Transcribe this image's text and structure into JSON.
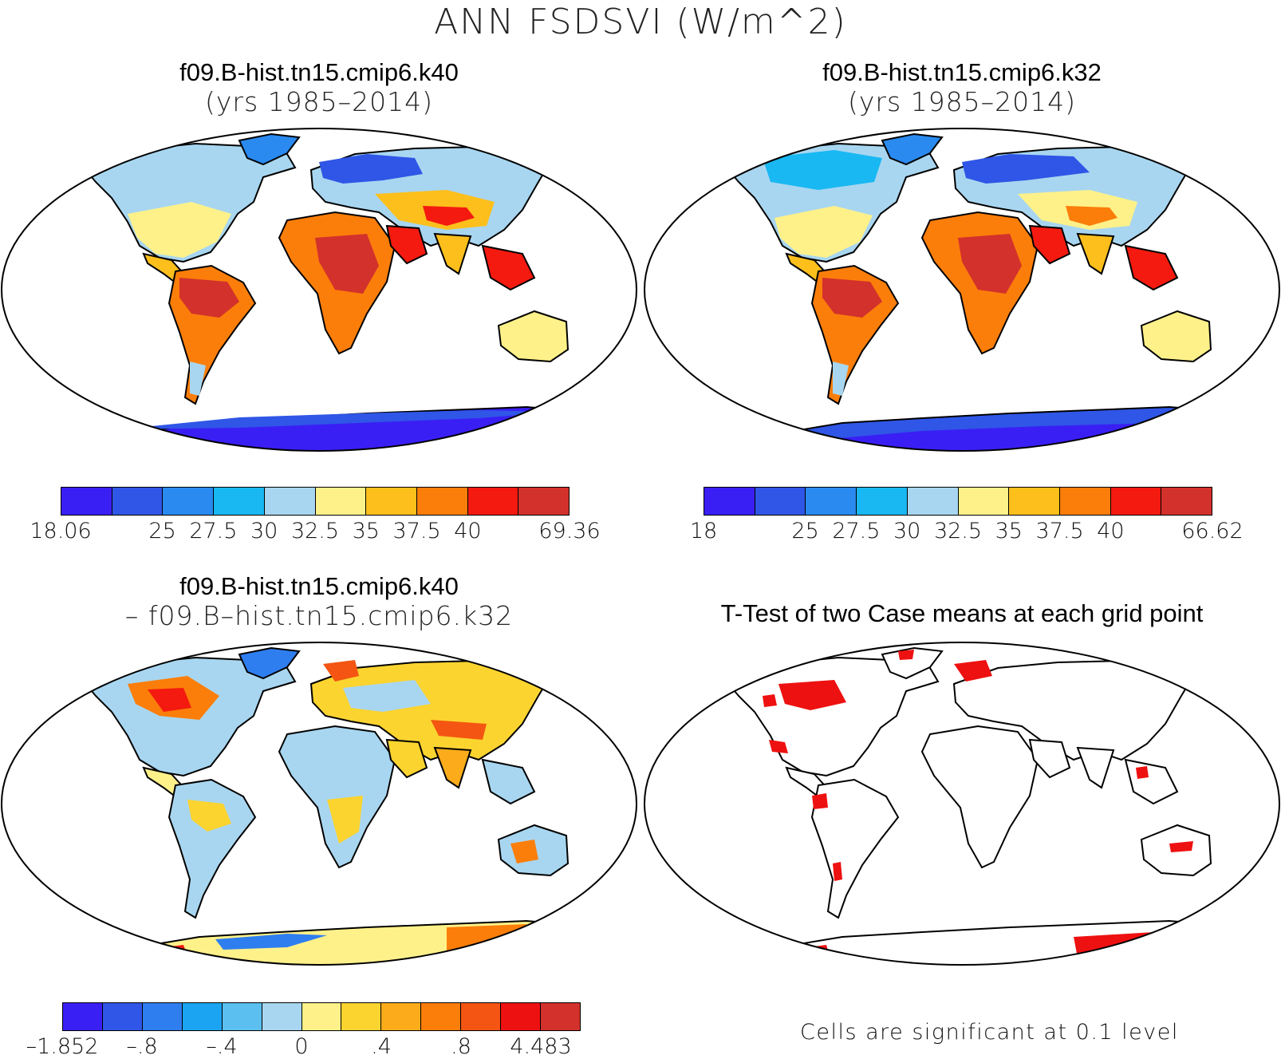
{
  "figure": {
    "title": "ANN FSDSVI (W/m^2)",
    "colors": {
      "blue_dark": "#3a1ff5",
      "blue": "#2f56e6",
      "mid_blue": "#2a8af0",
      "light_blue": "#1ab8f2",
      "pale_blue": "#a8d6f0",
      "pale_yellow": "#fff18a",
      "yellow": "#fcbf1c",
      "orange": "#fb7e0a",
      "red": "#f41a0f",
      "dark_red": "#d3312c",
      "significant": "#ee1111"
    }
  },
  "panels": {
    "top_left": {
      "title": "f09.B-hist.tn15.cmip6.k40",
      "subtitle": "(yrs 1985–2014)",
      "colorbar": {
        "labels": [
          "18.06",
          "25",
          "27.5",
          "30",
          "32.5",
          "35",
          "37.5",
          "40",
          "69.36"
        ],
        "colors": [
          "#3a1ff5",
          "#2f56e6",
          "#2a8af0",
          "#1ab8f2",
          "#a8d6f0",
          "#fff18a",
          "#fcbf1c",
          "#fb7e0a",
          "#f41a0f",
          "#d3312c"
        ]
      }
    },
    "top_right": {
      "title": "f09.B-hist.tn15.cmip6.k32",
      "subtitle": "(yrs 1985–2014)",
      "colorbar": {
        "labels": [
          "18",
          "25",
          "27.5",
          "30",
          "32.5",
          "35",
          "37.5",
          "40",
          "66.62"
        ],
        "colors": [
          "#3a1ff5",
          "#2f56e6",
          "#2a8af0",
          "#1ab8f2",
          "#a8d6f0",
          "#fff18a",
          "#fcbf1c",
          "#fb7e0a",
          "#f41a0f",
          "#d3312c"
        ]
      }
    },
    "bottom_left": {
      "title": "f09.B-hist.tn15.cmip6.k40",
      "subtitle": "– f09.B–hist.tn15.cmip6.k32",
      "colorbar": {
        "labels": [
          "–1.852",
          "–.8",
          "–.4",
          "0",
          ".4",
          ".8",
          "4.483"
        ],
        "colors": [
          "#3a1ff5",
          "#2f56e6",
          "#2f7ef0",
          "#1aa4f2",
          "#5bc0f0",
          "#a8d6f0",
          "#fff18a",
          "#fcd430",
          "#fcac1a",
          "#fb7e0a",
          "#f45512",
          "#ee1111",
          "#d3312c"
        ]
      }
    },
    "bottom_right": {
      "title": "T-Test of two Case means at each grid point",
      "note": "Cells are significant at 0.1 level"
    }
  }
}
